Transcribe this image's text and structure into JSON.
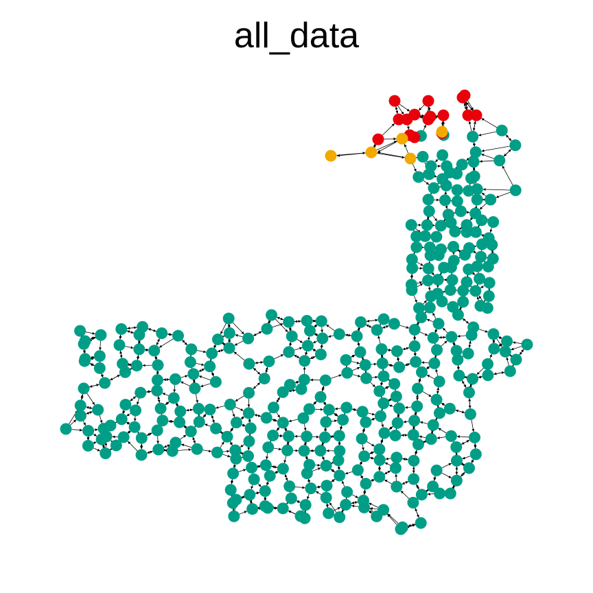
{
  "title": "all_data",
  "colors": {
    "background": "#ffffff",
    "edge": "#000000",
    "group_red": "#e8000b",
    "group_orange": "#f2a900",
    "group_teal": "#009e86"
  },
  "graph": {
    "type": "directed-network",
    "node_groups": [
      {
        "color_key": "group_red",
        "count": 16
      },
      {
        "color_key": "group_orange",
        "count": 5
      },
      {
        "color_key": "group_teal",
        "count": 360
      }
    ]
  }
}
